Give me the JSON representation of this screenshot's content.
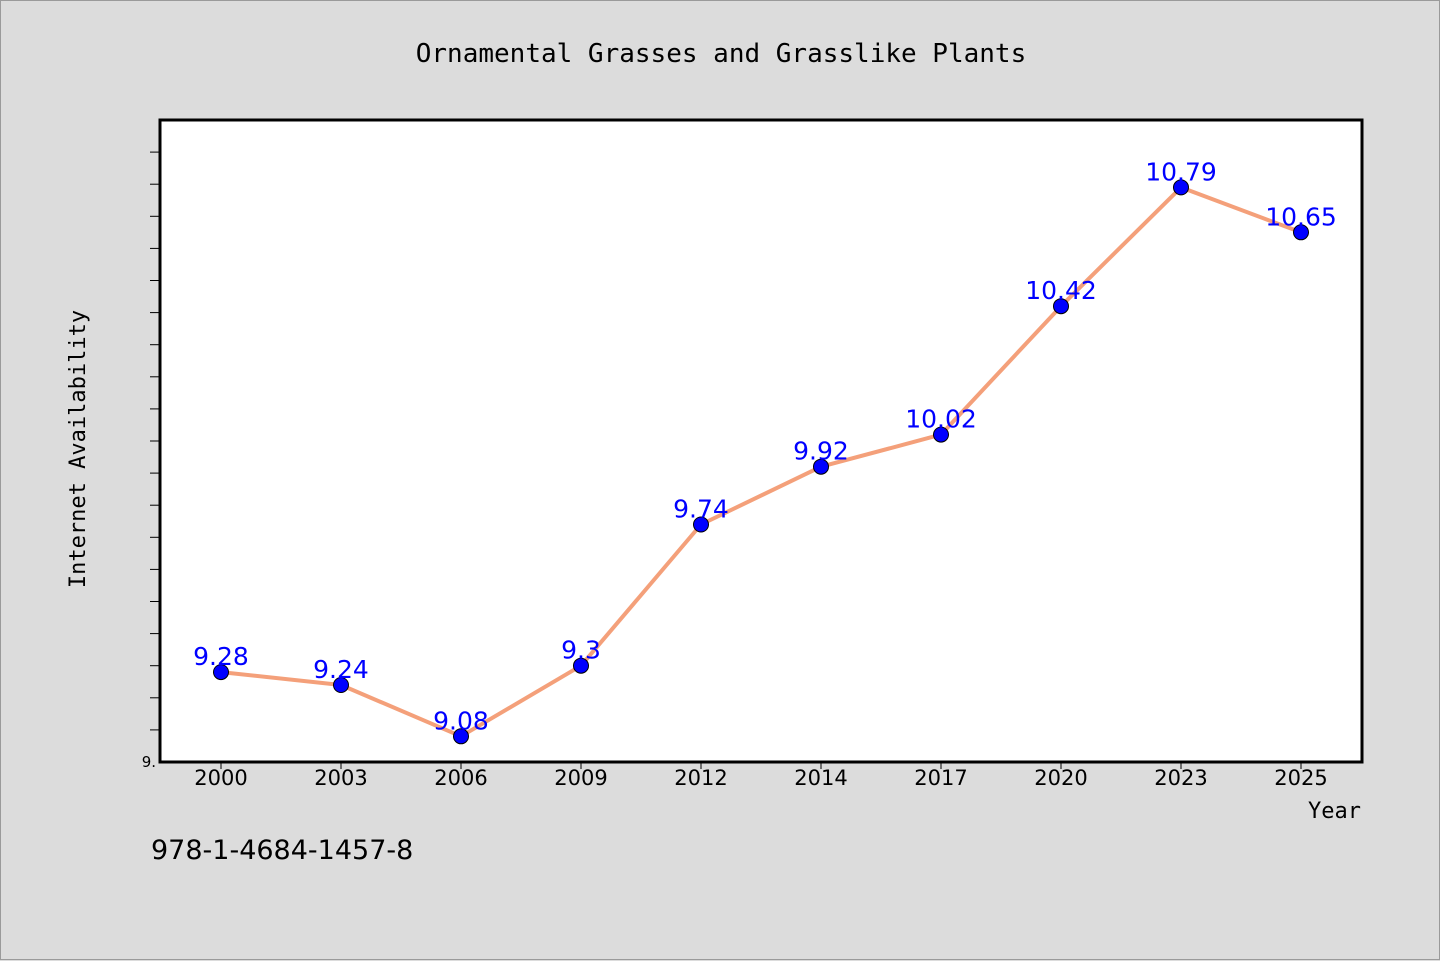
{
  "chart_data": {
    "type": "line",
    "title": "Ornamental Grasses and Grasslike Plants",
    "xlabel": "Year",
    "ylabel": "Internet Availability",
    "categories": [
      "2000",
      "2003",
      "2006",
      "2009",
      "2012",
      "2014",
      "2017",
      "2020",
      "2023",
      "2025"
    ],
    "series": [
      {
        "values": [
          9.28,
          9.24,
          9.08,
          9.3,
          9.74,
          9.92,
          10.02,
          10.42,
          10.79,
          10.65
        ],
        "labels": [
          "9.28",
          "9.24",
          "9.08",
          "9.3",
          "9.74",
          "9.92",
          "10.02",
          "10.42",
          "10.79",
          "10.65"
        ],
        "line_color": "#f4a07a",
        "marker_color": "#0000ff"
      }
    ],
    "ylim": [
      9.0,
      11.0
    ],
    "y_tick_labels": [
      "9."
    ],
    "grid": false,
    "label_color": "#0000ff"
  },
  "footer": {
    "isbn": "978-1-4684-1457-8"
  }
}
